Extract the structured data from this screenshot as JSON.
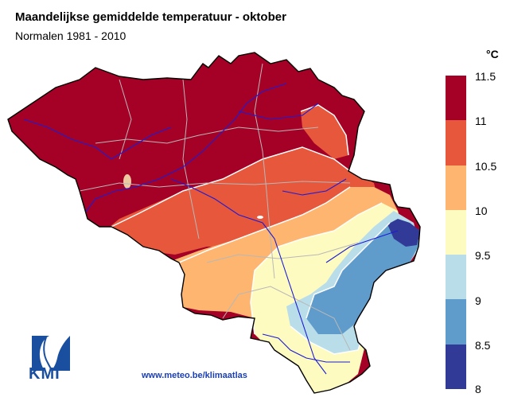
{
  "header": {
    "title": "Maandelijkse gemiddelde temperatuur - oktober",
    "subtitle": "Normalen 1981 - 2010"
  },
  "legend": {
    "unit": "°C",
    "ticks": [
      "11.5",
      "11",
      "10.5",
      "10",
      "9.5",
      "9",
      "8.5",
      "8"
    ],
    "colors": [
      "#a50026",
      "#e6573b",
      "#fdb56f",
      "#fefbc0",
      "#b9dde9",
      "#5f9ccb",
      "#313a96"
    ]
  },
  "footer": {
    "logo_text": "KMI",
    "url": "www.meteo.be/klimaatlas"
  }
}
